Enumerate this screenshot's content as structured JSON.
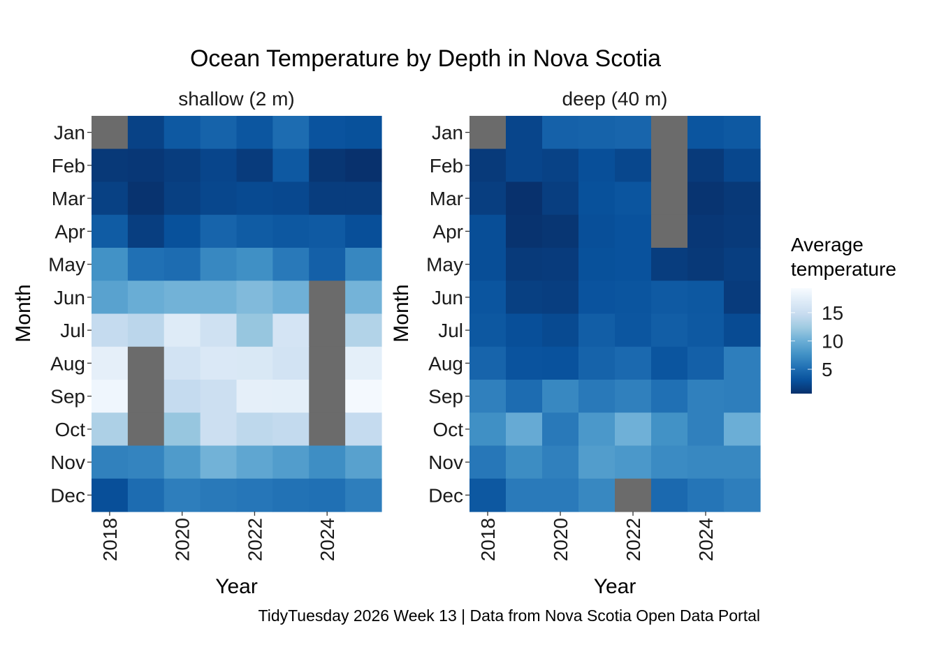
{
  "chart_data": {
    "type": "heatmap",
    "title": "Ocean Temperature by Depth in Nova Scotia",
    "caption": "TidyTuesday 2026 Week 13 | Data from Nova Scotia Open Data Portal",
    "xlabel": "Year",
    "ylabel": "Month",
    "x": [
      2018,
      2019,
      2020,
      2021,
      2022,
      2023,
      2024,
      2025
    ],
    "x_tick_labels": [
      "2018",
      "2020",
      "2022",
      "2024"
    ],
    "x_tick_values": [
      2018,
      2020,
      2022,
      2024
    ],
    "y": [
      "Jan",
      "Feb",
      "Mar",
      "Apr",
      "May",
      "Jun",
      "Jul",
      "Aug",
      "Sep",
      "Oct",
      "Nov",
      "Dec"
    ],
    "legend": {
      "title_lines": [
        "Average",
        "temperature"
      ],
      "ticks": [
        5,
        10,
        15
      ],
      "range": [
        0.7,
        19.3
      ],
      "placement": "right"
    },
    "color_scale": {
      "palette": [
        "#08306b",
        "#08519c",
        "#2171b5",
        "#4292c6",
        "#6baed6",
        "#9ecae1",
        "#c6dbef",
        "#deebf7",
        "#f7fbff"
      ],
      "na_color": "#6b6b6b"
    },
    "panels": [
      {
        "label": "shallow (2 m)",
        "values": [
          [
            null,
            2.0,
            3.6,
            4.3,
            3.4,
            5.0,
            3.2,
            3.0
          ],
          [
            1.3,
            1.2,
            1.6,
            2.2,
            1.5,
            3.6,
            1.1,
            0.8
          ],
          [
            1.9,
            0.9,
            1.8,
            2.3,
            2.5,
            2.4,
            1.6,
            1.6
          ],
          [
            3.8,
            1.7,
            3.0,
            4.4,
            3.8,
            3.5,
            3.7,
            2.9
          ],
          [
            7.7,
            5.3,
            5.0,
            7.0,
            7.5,
            5.9,
            4.1,
            6.9
          ],
          [
            9.0,
            9.9,
            10.3,
            10.3,
            11.0,
            10.2,
            null,
            10.4
          ],
          [
            14.6,
            14.0,
            17.0,
            15.5,
            12.0,
            16.0,
            null,
            13.5
          ],
          [
            17.6,
            null,
            15.8,
            16.6,
            16.5,
            15.8,
            null,
            17.5
          ],
          [
            18.6,
            null,
            14.6,
            15.2,
            17.6,
            17.5,
            null,
            19.0
          ],
          [
            13.2,
            null,
            12.0,
            15.2,
            14.2,
            14.5,
            null,
            14.6
          ],
          [
            6.5,
            6.7,
            8.4,
            10.3,
            9.3,
            8.6,
            7.4,
            8.9
          ],
          [
            2.9,
            5.0,
            6.3,
            5.9,
            5.7,
            5.4,
            5.3,
            6.3
          ]
        ]
      },
      {
        "label": "deep (40 m)",
        "values": [
          [
            null,
            2.2,
            4.2,
            4.3,
            4.5,
            null,
            3.3,
            3.6
          ],
          [
            1.4,
            2.2,
            2.0,
            2.9,
            2.3,
            null,
            1.4,
            2.3
          ],
          [
            1.7,
            0.8,
            1.7,
            3.0,
            3.3,
            null,
            1.0,
            1.3
          ],
          [
            2.8,
            0.9,
            1.1,
            2.9,
            3.1,
            null,
            1.2,
            1.4
          ],
          [
            2.8,
            1.4,
            1.5,
            3.0,
            3.1,
            1.6,
            1.3,
            1.7
          ],
          [
            3.3,
            1.8,
            1.7,
            3.2,
            3.3,
            3.7,
            3.5,
            1.5
          ],
          [
            3.5,
            2.9,
            2.5,
            4.0,
            3.4,
            4.0,
            3.6,
            2.6
          ],
          [
            4.4,
            3.2,
            3.1,
            4.3,
            4.8,
            3.3,
            4.1,
            6.3
          ],
          [
            6.4,
            5.0,
            7.0,
            5.9,
            6.4,
            5.3,
            6.4,
            6.3
          ],
          [
            7.5,
            9.7,
            5.9,
            8.2,
            10.2,
            7.7,
            6.4,
            10.0
          ],
          [
            5.8,
            7.3,
            6.4,
            8.6,
            8.2,
            7.2,
            7.0,
            7.0
          ],
          [
            3.5,
            6.0,
            6.0,
            7.0,
            null,
            4.8,
            5.6,
            6.3
          ]
        ]
      }
    ]
  }
}
